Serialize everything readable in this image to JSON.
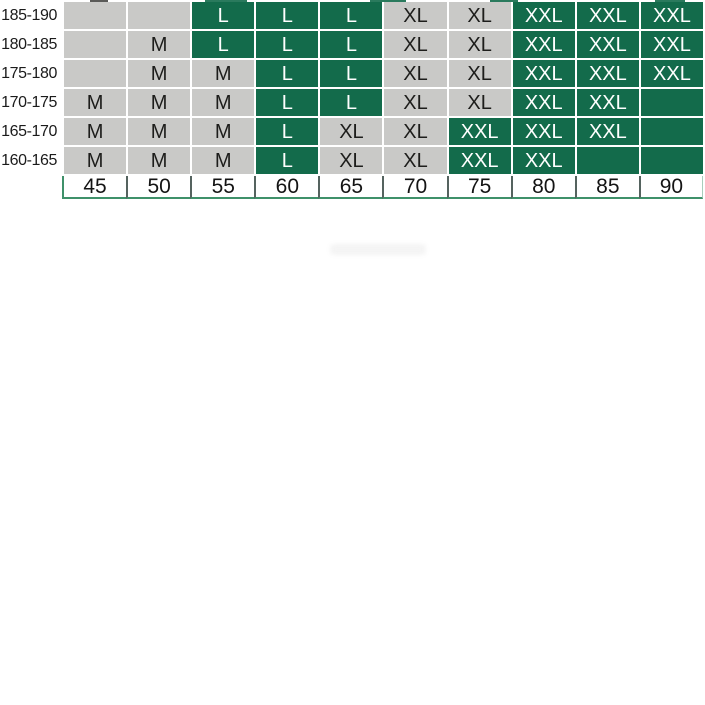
{
  "chart_data": {
    "type": "table",
    "title": "",
    "x_categories": [
      "45",
      "50",
      "55",
      "60",
      "65",
      "70",
      "75",
      "80",
      "85",
      "90"
    ],
    "y_categories": [
      "185-190",
      "180-185",
      "175-180",
      "170-175",
      "165-170",
      "160-165"
    ],
    "values": [
      [
        "",
        "",
        "L",
        "L",
        "L",
        "XL",
        "XL",
        "XXL",
        "XXL",
        "XXL"
      ],
      [
        "",
        "M",
        "L",
        "L",
        "L",
        "XL",
        "XL",
        "XXL",
        "XXL",
        "XXL"
      ],
      [
        "",
        "M",
        "M",
        "L",
        "L",
        "XL",
        "XL",
        "XXL",
        "XXL",
        "XXL"
      ],
      [
        "M",
        "M",
        "M",
        "L",
        "L",
        "XL",
        "XL",
        "XXL",
        "XXL",
        ""
      ],
      [
        "M",
        "M",
        "M",
        "L",
        "XL",
        "XL",
        "XXL",
        "XXL",
        "XXL",
        ""
      ],
      [
        "M",
        "M",
        "M",
        "L",
        "XL",
        "XL",
        "XXL",
        "XXL",
        "",
        ""
      ]
    ],
    "cell_styles": [
      [
        "gray",
        "gray",
        "green",
        "green",
        "green",
        "gray",
        "gray",
        "green",
        "green",
        "green"
      ],
      [
        "gray",
        "gray",
        "green",
        "green",
        "green",
        "gray",
        "gray",
        "green",
        "green",
        "green"
      ],
      [
        "gray",
        "gray",
        "gray",
        "green",
        "green",
        "gray",
        "gray",
        "green",
        "green",
        "green"
      ],
      [
        "gray",
        "gray",
        "gray",
        "green",
        "green",
        "gray",
        "gray",
        "green",
        "green",
        "green"
      ],
      [
        "gray",
        "gray",
        "gray",
        "green",
        "gray",
        "gray",
        "green",
        "green",
        "green",
        "green"
      ],
      [
        "gray",
        "gray",
        "gray",
        "green",
        "gray",
        "gray",
        "green",
        "green",
        "green",
        "green"
      ]
    ],
    "layout_hints": {
      "grid": "on",
      "highlighted_cell_style": "green",
      "default_cell_style": "gray",
      "weight_axis_position": "bottom",
      "height_axis_position": "left"
    }
  },
  "colors": {
    "highlight_green": "#136b4b",
    "cell_gray": "#c9c9c7",
    "border_green": "#3f916a",
    "separator_dark": "#55635f",
    "text_dark": "#1b1b1b",
    "text_light": "#ffffff"
  }
}
